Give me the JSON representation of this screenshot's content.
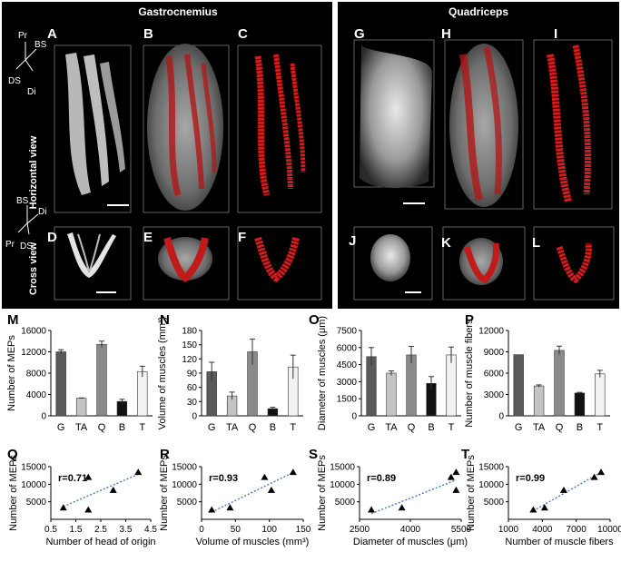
{
  "headers": {
    "left": "Gastrocnemius",
    "right": "Quadriceps"
  },
  "row_labels": {
    "horizontal": "Horizontal view",
    "cross": "Cross view"
  },
  "orientation_top": [
    "Pr",
    "BS",
    "DS",
    "Di"
  ],
  "orientation_bottom": [
    "BS",
    "Di",
    "Pr",
    "DS"
  ],
  "image_panels": [
    "A",
    "B",
    "C",
    "D",
    "E",
    "F",
    "G",
    "H",
    "I",
    "J",
    "K",
    "L"
  ],
  "colors": {
    "red": "#cc1a1a",
    "bar_G": "#5a5a5a",
    "bar_TA": "#c4c4c4",
    "bar_Q": "#8a8a8a",
    "bar_B": "#111111",
    "bar_T": "#f2f2f2",
    "trend": "#4a7ab8"
  },
  "chart_data": [
    {
      "panel": "M",
      "type": "bar",
      "categories": [
        "G",
        "TA",
        "Q",
        "B",
        "T"
      ],
      "values": [
        12000,
        3300,
        13400,
        2700,
        8300
      ],
      "errors": [
        400,
        60,
        600,
        400,
        1000
      ],
      "ylabel": "Number of MEPs",
      "ylim": [
        0,
        16000
      ],
      "yticks": [
        0,
        4000,
        8000,
        12000,
        16000
      ]
    },
    {
      "panel": "N",
      "type": "bar",
      "categories": [
        "G",
        "TA",
        "Q",
        "B",
        "T"
      ],
      "values": [
        93,
        42,
        135,
        15,
        103
      ],
      "errors": [
        20,
        8,
        27,
        3,
        25
      ],
      "ylabel": "Volume of muscles (mm³)",
      "ylim": [
        0,
        180
      ],
      "yticks": [
        0,
        30,
        60,
        90,
        120,
        150,
        180
      ]
    },
    {
      "panel": "O",
      "type": "bar",
      "categories": [
        "G",
        "TA",
        "Q",
        "B",
        "T"
      ],
      "values": [
        5200,
        3750,
        5350,
        2850,
        5350
      ],
      "errors": [
        800,
        200,
        750,
        600,
        700
      ],
      "ylabel": "Diameter of muscles (μm)",
      "ylim": [
        0,
        7500
      ],
      "yticks": [
        0,
        1500,
        3000,
        4500,
        6000,
        7500
      ]
    },
    {
      "panel": "P",
      "type": "bar",
      "categories": [
        "G",
        "TA",
        "Q",
        "B",
        "T"
      ],
      "values": [
        8600,
        4200,
        9200,
        3200,
        5900
      ],
      "errors": [
        0,
        150,
        600,
        100,
        500
      ],
      "ylabel": "Number of muscle fibers",
      "ylim": [
        0,
        12000
      ],
      "yticks": [
        0,
        3000,
        6000,
        9000,
        12000
      ]
    },
    {
      "panel": "Q",
      "type": "scatter",
      "r_label": "r=0.71",
      "x": [
        1,
        2,
        2,
        3,
        4
      ],
      "y": [
        3300,
        12000,
        2700,
        8300,
        13400
      ],
      "xlabel": "Number of head of origin",
      "ylabel": "Number of MEPs",
      "xlim": [
        0.5,
        4.5
      ],
      "xticks": [
        0.5,
        1.5,
        2.5,
        3.5,
        4.5
      ],
      "ylim": [
        0,
        15000
      ],
      "yticks": [
        5000,
        10000,
        15000
      ]
    },
    {
      "panel": "R",
      "type": "scatter",
      "r_label": "r=0.93",
      "x": [
        15,
        42,
        93,
        103,
        135
      ],
      "y": [
        2700,
        3300,
        12000,
        8300,
        13400
      ],
      "xlabel": "Volume of muscles (mm³)",
      "ylabel": "Number of MEPs",
      "xlim": [
        0,
        150
      ],
      "xticks": [
        0,
        50,
        100,
        150
      ],
      "ylim": [
        0,
        15000
      ],
      "yticks": [
        5000,
        10000,
        15000
      ]
    },
    {
      "panel": "S",
      "type": "scatter",
      "r_label": "r=0.89",
      "x": [
        2850,
        3750,
        5200,
        5350,
        5350
      ],
      "y": [
        2700,
        3300,
        12000,
        13400,
        8300
      ],
      "xlabel": "Diameter of muscles (μm)",
      "ylabel": "Number of MEPs",
      "xlim": [
        2500,
        5500
      ],
      "xticks": [
        2500,
        4000,
        5500
      ],
      "ylim": [
        0,
        15000
      ],
      "yticks": [
        5000,
        10000,
        15000
      ]
    },
    {
      "panel": "T",
      "type": "scatter",
      "r_label": "r=0.99",
      "x": [
        3200,
        4200,
        5900,
        8600,
        9200
      ],
      "y": [
        2700,
        3300,
        8300,
        12000,
        13400
      ],
      "xlabel": "Number of muscle fibers",
      "ylabel": "Number of MEPs",
      "xlim": [
        1000,
        10000
      ],
      "xticks": [
        1000,
        4000,
        7000,
        10000
      ],
      "ylim": [
        0,
        15000
      ],
      "yticks": [
        5000,
        10000,
        15000
      ]
    }
  ]
}
